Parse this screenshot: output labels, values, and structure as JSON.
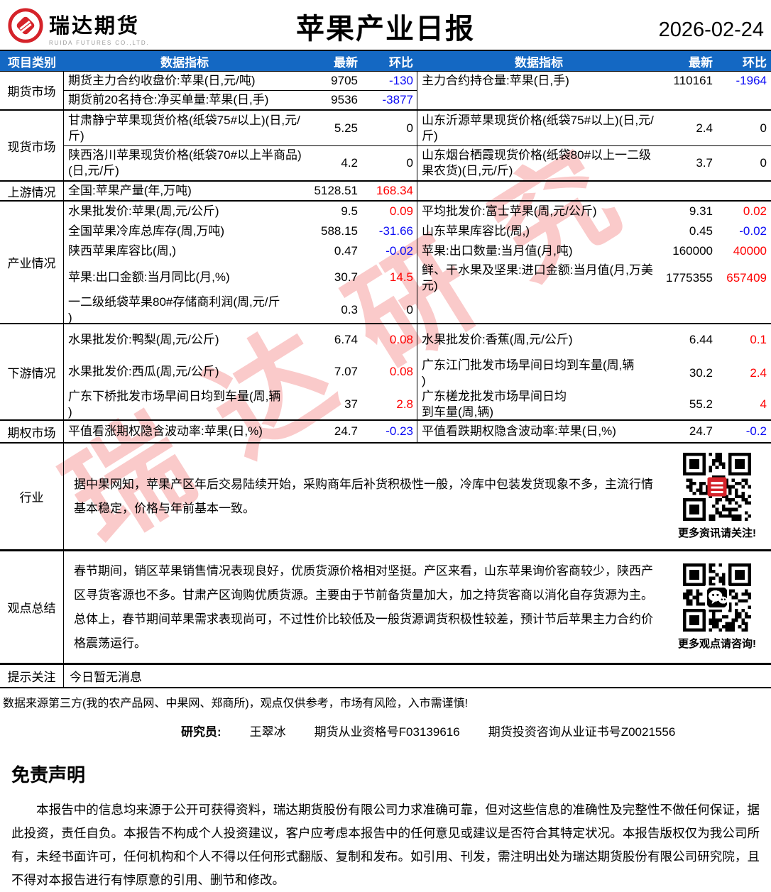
{
  "header": {
    "logo_text": "瑞达期货",
    "logo_sub": "RUIDA FUTURES CO.,LTD.",
    "title": "苹果产业日报",
    "date": "2026-02-24"
  },
  "watermark": "瑞达研究",
  "table": {
    "columns": {
      "category": "项目类别",
      "indicator": "数据指标",
      "latest": "最新",
      "wow": "环比"
    },
    "groups": [
      {
        "category": "期货市场",
        "left": [
          {
            "label": "期货主力合约收盘价:苹果(日,元/吨)",
            "latest": "9705",
            "delta": "-130",
            "trend": "down"
          },
          {
            "label": "期货前20名持仓:净买单量:苹果(日,手)",
            "latest": "9536",
            "delta": "-3877",
            "trend": "down"
          }
        ],
        "right": [
          {
            "label": "主力合约持仓量:苹果(日,手)",
            "latest": "110161",
            "delta": "-1964",
            "trend": "down"
          },
          {
            "label": "",
            "latest": "",
            "delta": "",
            "trend": "flat"
          }
        ]
      },
      {
        "category": "现货市场",
        "left": [
          {
            "label": "甘肃静宁苹果现货价格(纸袋75#以上)(日,元/斤)",
            "latest": "5.25",
            "delta": "0",
            "trend": "flat"
          },
          {
            "label": "陕西洛川苹果现货价格(纸袋70#以上半商品)(日,元/斤)",
            "latest": "4.2",
            "delta": "0",
            "trend": "flat"
          }
        ],
        "right": [
          {
            "label": "山东沂源苹果现货价格(纸袋75#以上)(日,元/斤)",
            "latest": "2.4",
            "delta": "0",
            "trend": "flat"
          },
          {
            "label": "山东烟台栖霞现货价格(纸袋80#以上一二级果农货)(日,元/斤)",
            "latest": "3.7",
            "delta": "0",
            "trend": "flat"
          }
        ]
      },
      {
        "category": "上游情况",
        "left": [
          {
            "label": "全国:苹果产量(年,万吨)",
            "latest": "5128.51",
            "delta": "168.34",
            "trend": "up"
          }
        ],
        "right": [
          {
            "label": "",
            "latest": "",
            "delta": "",
            "trend": "flat"
          }
        ]
      },
      {
        "category": "产业情况",
        "left": [
          {
            "label": "水果批发价:苹果(周,元/公斤)",
            "latest": "9.5",
            "delta": "0.09",
            "trend": "up"
          },
          {
            "label": "全国苹果冷库总库存(周,万吨)",
            "latest": "588.15",
            "delta": "-31.66",
            "trend": "down"
          },
          {
            "label": "陕西苹果库容比(周,)",
            "latest": "0.47",
            "delta": "-0.02",
            "trend": "down"
          },
          {
            "label": "苹果:出口金额:当月同比(月,%)",
            "latest": "30.7",
            "delta": "14.5",
            "trend": "up"
          },
          {
            "label": "一二级纸袋苹果80#存储商利润(周,元/斤\n)",
            "latest": "0.3",
            "delta": "0",
            "trend": "flat"
          }
        ],
        "right": [
          {
            "label": "平均批发价:富士苹果(周,元/公斤)",
            "latest": "9.31",
            "delta": "0.02",
            "trend": "up"
          },
          {
            "label": "山东苹果库容比(周,)",
            "latest": "0.45",
            "delta": "-0.02",
            "trend": "down"
          },
          {
            "label": "苹果:出口数量:当月值(月,吨)",
            "latest": "160000",
            "delta": "40000",
            "trend": "up"
          },
          {
            "label": "鲜、干水果及坚果:进口金额:当月值(月,万美元)",
            "latest": "1775355",
            "delta": "657409",
            "trend": "up"
          },
          {
            "label": "",
            "latest": "",
            "delta": "",
            "trend": "flat"
          }
        ]
      },
      {
        "category": "下游情况",
        "left": [
          {
            "label": "水果批发价:鸭梨(周,元/公斤)",
            "latest": "6.74",
            "delta": "0.08",
            "trend": "up"
          },
          {
            "label": "水果批发价:西瓜(周,元/公斤)",
            "latest": "7.07",
            "delta": "0.08",
            "trend": "up"
          },
          {
            "label": "广东下桥批发市场早间日均到车量(周,辆\n)",
            "latest": "37",
            "delta": "2.8",
            "trend": "up"
          }
        ],
        "right": [
          {
            "label": "水果批发价:香蕉(周,元/公斤)",
            "latest": "6.44",
            "delta": "0.1",
            "trend": "up"
          },
          {
            "label": "广东江门批发市场早间日均到车量(周,辆\n)",
            "latest": "30.2",
            "delta": "2.4",
            "trend": "up"
          },
          {
            "label": "广东槎龙批发市场早间日均\n到车量(周,辆)",
            "latest": "55.2",
            "delta": "4",
            "trend": "up"
          }
        ]
      },
      {
        "category": "期权市场",
        "left": [
          {
            "label": "平值看涨期权隐含波动率:苹果(日,%)",
            "latest": "24.7",
            "delta": "-0.23",
            "trend": "down"
          }
        ],
        "right": [
          {
            "label": "平值看跌期权隐含波动率:苹果(日,%)",
            "latest": "24.7",
            "delta": "-0.2",
            "trend": "down"
          }
        ]
      }
    ]
  },
  "industry": {
    "category": "行业",
    "text": "据中果网知，苹果产区年后交易陆续开始，采购商年后补货积极性一般，冷库中包装发货现象不多，主流行情基本稳定，价格与年前基本一致。",
    "qr_caption": "更多资讯请关注!"
  },
  "summary": {
    "category": "观点总结",
    "text": "春节期间，销区苹果销售情况表现良好，优质货源价格相对坚挺。产区来看，山东苹果询价客商较少，陕西产区寻货客源也不多。甘肃产区询购优质货源。主要由于节前备货量加大，加之持货客商以消化自存货源为主。总体上，春节期间苹果需求表现尚可，不过性价比较低及一般货源调货积极性较差，预计节后苹果主力合约价格震荡运行。",
    "qr_caption": "更多观点请咨询!"
  },
  "notice": {
    "category": "提示关注",
    "text": "今日暂无消息"
  },
  "footnote": "数据来源第三方(我的农产品网、中果网、郑商所)，观点仅供参考，市场有风险，入市需谨慎!",
  "researcher": {
    "label": "研究员:",
    "name": "王翠冰",
    "cert1": "期货从业资格号F03139616",
    "cert2": "期货投资咨询从业证书号Z0021556"
  },
  "disclaimer": {
    "title": "免责声明",
    "body": "本报告中的信息均来源于公开可获得资料，瑞达期货股份有限公司力求准确可靠，但对这些信息的准确性及完整性不做任何保证，据此投资，责任自负。本报告不构成个人投资建议，客户应考虑本报告中的任何意见或建议是否符合其特定状况。本报告版权仅为我公司所有，未经书面许可，任何机构和个人不得以任何形式翻版、复制和发布。如引用、刊发，需注明出处为瑞达期货股份有限公司研究院，且不得对本报告进行有悖原意的引用、删节和修改。"
  },
  "colors": {
    "header_bg": "#1468C3",
    "up": "#FE0000",
    "down": "#0A0AF5",
    "flat": "#000000",
    "logo_red": "#D5232A",
    "watermark_pink": "#F6A0A0"
  }
}
